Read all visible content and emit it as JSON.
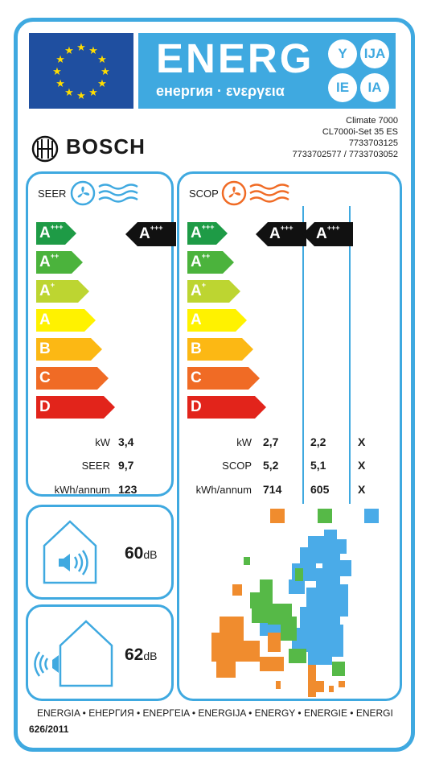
{
  "header": {
    "energy_word": "ENERG",
    "energy_subtitle": "енергия · ενεργεια",
    "languages": [
      "Y",
      "IJA",
      "IE",
      "IA"
    ]
  },
  "brand": {
    "name": "BOSCH",
    "logo_icon": "bosch-armature-icon"
  },
  "product": {
    "line1": "Climate 7000",
    "line2": "CL7000i-Set 35 ES",
    "line3": "7733703125",
    "line4": "7733702577 / 7733703052"
  },
  "cooling": {
    "title": "SEER",
    "icon": "fan-cooling-icon",
    "classes": [
      {
        "letter": "A",
        "plus": "+++",
        "color": "#1e9b46"
      },
      {
        "letter": "A",
        "plus": "++",
        "color": "#4bb33c"
      },
      {
        "letter": "A",
        "plus": "+",
        "color": "#bdd531"
      },
      {
        "letter": "A",
        "plus": "",
        "color": "#fff200"
      },
      {
        "letter": "B",
        "plus": "",
        "color": "#fcb814"
      },
      {
        "letter": "C",
        "plus": "",
        "color": "#f06b25"
      },
      {
        "letter": "D",
        "plus": "",
        "color": "#e2241b"
      }
    ],
    "rating": {
      "letter": "A",
      "plus": "+++"
    },
    "rows": [
      {
        "label": "kW",
        "value": "3,4"
      },
      {
        "label": "SEER",
        "value": "9,7"
      },
      {
        "label": "kWh/annum",
        "value": "123"
      }
    ]
  },
  "heating": {
    "title": "SCOP",
    "icon": "fan-heating-icon",
    "ratings": [
      {
        "letter": "A",
        "plus": "+++"
      },
      {
        "letter": "A",
        "plus": "+++"
      }
    ],
    "rows": [
      {
        "label": "kW",
        "values": [
          "2,7",
          "2,2",
          "X"
        ]
      },
      {
        "label": "SCOP",
        "values": [
          "5,2",
          "5,1",
          "X"
        ]
      },
      {
        "label": "kWh/annum",
        "values": [
          "714",
          "605",
          "X"
        ]
      }
    ],
    "climate_colors": [
      "#f08c2e",
      "#56b947",
      "#4aabe8"
    ]
  },
  "noise": {
    "indoor": {
      "value": "60",
      "unit": "dB",
      "icon": "indoor-speaker-icon"
    },
    "outdoor": {
      "value": "62",
      "unit": "dB",
      "icon": "outdoor-speaker-icon"
    }
  },
  "map": {
    "icon": "europe-climate-map"
  },
  "footer": {
    "languages": "ENERGIA • ЕНЕРГИЯ • ΕΝΕΡΓΕΙΑ • ENERGIJA • ENERGY • ENERGIE • ENERGI",
    "regulation": "626/2011"
  },
  "colors": {
    "frame": "#3fa9e0",
    "eu_blue": "#1f4fa0",
    "star": "#ffdd00"
  }
}
